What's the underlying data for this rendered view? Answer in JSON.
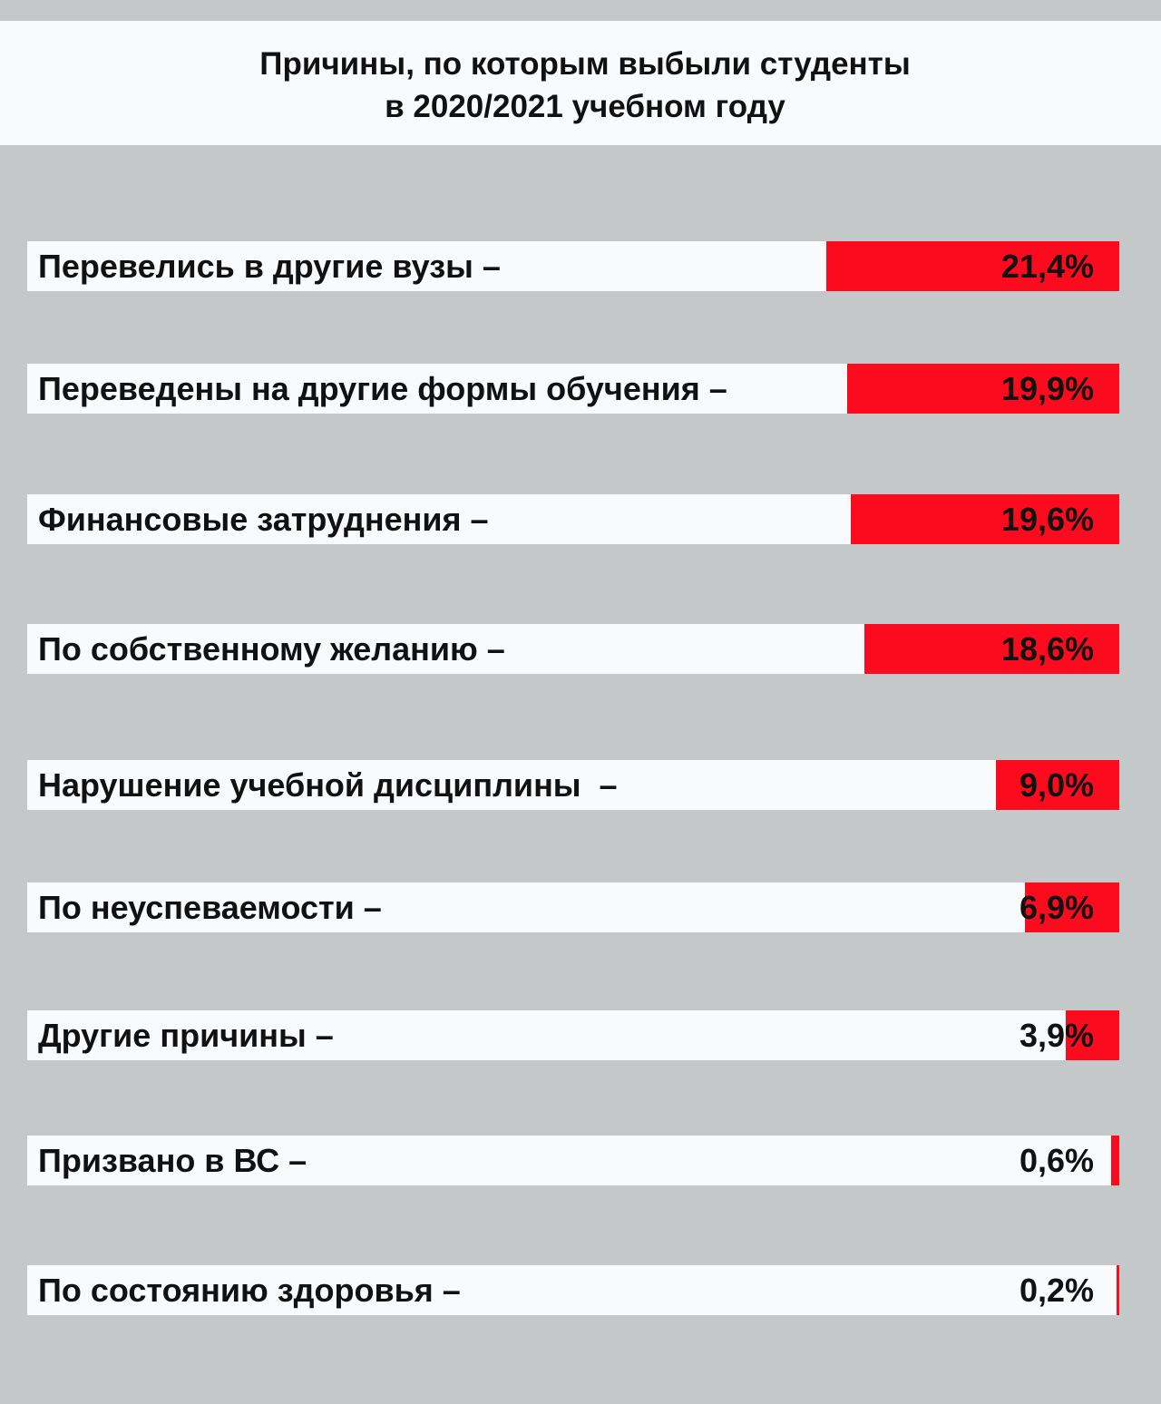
{
  "chart_data": {
    "type": "bar",
    "orientation": "horizontal",
    "title": [
      "Причины, по которым выбыли студенты",
      "в 2020/2021 учебном году"
    ],
    "categories": [
      "Перевелись в другие вузы –",
      "Переведены на другие формы обучения –",
      "Финансовые затруднения –",
      "По собственному желанию –",
      "Нарушение учебной дисциплины  –",
      "По неуспеваемости –",
      "Другие причины –",
      "Призвано в ВС –",
      "По состоянию здоровья –"
    ],
    "values": [
      21.4,
      19.9,
      19.6,
      18.6,
      9.0,
      6.9,
      3.9,
      0.6,
      0.2
    ],
    "value_labels": [
      "21,4%",
      "19,9%",
      "19,6%",
      "18,6%",
      "9,0%",
      "6,9%",
      "3,9%",
      "0,6%",
      "0,2%"
    ],
    "unit": "%",
    "grid": false,
    "colors": {
      "bar": "#fc0a1e",
      "row_background": "#f8fafb",
      "page_background": "#c5c8c9"
    }
  }
}
